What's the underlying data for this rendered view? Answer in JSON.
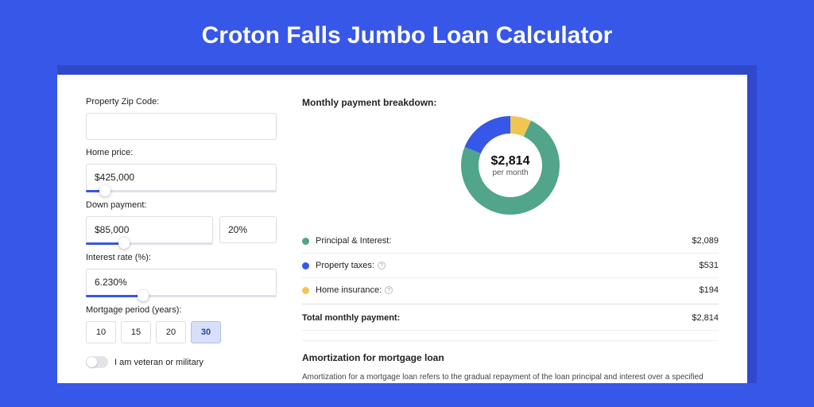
{
  "page": {
    "title": "Croton Falls Jumbo Loan Calculator",
    "background_color": "#3757e8",
    "shadow_color": "#2f49c9"
  },
  "form": {
    "zip": {
      "label": "Property Zip Code:",
      "value": ""
    },
    "price": {
      "label": "Home price:",
      "value": "$425,000",
      "slider_pct": 10
    },
    "down": {
      "label": "Down payment:",
      "amount": "$85,000",
      "percent": "20%",
      "slider_pct": 20
    },
    "rate": {
      "label": "Interest rate (%):",
      "value": "6.230%",
      "slider_pct": 30
    },
    "period": {
      "label": "Mortgage period (years):",
      "options": [
        "10",
        "15",
        "20",
        "30"
      ],
      "selected": "30"
    },
    "veteran": {
      "label": "I am veteran or military",
      "value": false
    }
  },
  "breakdown": {
    "title": "Monthly payment breakdown:",
    "center_amount": "$2,814",
    "center_sub": "per month",
    "donut": {
      "type": "donut",
      "outer_radius": 62,
      "inner_radius": 40,
      "slices": [
        {
          "key": "principal",
          "value": 2089,
          "color": "#50a58a",
          "pct": 74.2
        },
        {
          "key": "taxes",
          "value": 531,
          "color": "#3757e8",
          "pct": 18.9
        },
        {
          "key": "insurance",
          "value": 194,
          "color": "#f0c552",
          "pct": 6.9
        }
      ],
      "background_color": "#ffffff"
    },
    "rows": [
      {
        "label": "Principal & Interest:",
        "value": "$2,089",
        "color": "#50a58a",
        "info": false
      },
      {
        "label": "Property taxes:",
        "value": "$531",
        "color": "#3757e8",
        "info": true
      },
      {
        "label": "Home insurance:",
        "value": "$194",
        "color": "#f0c552",
        "info": true
      }
    ],
    "total": {
      "label": "Total monthly payment:",
      "value": "$2,814"
    }
  },
  "amortization": {
    "title": "Amortization for mortgage loan",
    "text": "Amortization for a mortgage loan refers to the gradual repayment of the loan principal and interest over a specified"
  }
}
